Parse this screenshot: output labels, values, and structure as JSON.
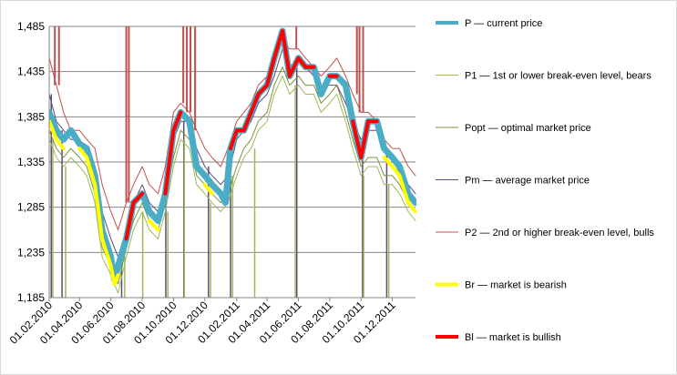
{
  "chart_data": {
    "type": "line",
    "y_ticks": [
      "1,485",
      "1,435",
      "1,385",
      "1,335",
      "1,285",
      "1,235",
      "1,185"
    ],
    "ylim": [
      1.185,
      1.485
    ],
    "x_ticks": [
      "01.02.2010",
      "01.04.2010",
      "01.06.2010",
      "01.08.2010",
      "01.10.2010",
      "01.12.2010",
      "01.02.2011",
      "01.04.2011",
      "01.06.2011",
      "01.08.2011",
      "01.10.2011",
      "01.12.2011"
    ],
    "x_range": [
      "2010-02-01",
      "2012-01-15"
    ],
    "grid": "horizontal",
    "legend_position": "right",
    "legend": [
      {
        "key": "P",
        "label": "P — current price",
        "color": "#4BACC6"
      },
      {
        "key": "P1",
        "label": "P1 — 1st or lower break-even level, bears",
        "color": "#9BBB59"
      },
      {
        "key": "Popt",
        "label": "Popt — optimal market price",
        "color": "#77933C"
      },
      {
        "key": "Pm",
        "label": "Pm — average market price",
        "color": "#604A7B"
      },
      {
        "key": "P2",
        "label": "P2 — 2nd or higher break-even level, bulls",
        "color": "#C0504D"
      },
      {
        "key": "Br",
        "label": "Br — market is bearish",
        "color": "#FFFF00"
      },
      {
        "key": "Bl",
        "label": "Bl — market is bullish",
        "color": "#FF0000"
      }
    ],
    "series": [
      {
        "key": "P",
        "x": [
          "2010-02-01",
          "2010-02-15",
          "2010-03-01",
          "2010-03-15",
          "2010-04-01",
          "2010-04-15",
          "2010-05-01",
          "2010-05-15",
          "2010-06-01",
          "2010-06-08",
          "2010-06-15",
          "2010-07-01",
          "2010-07-15",
          "2010-08-01",
          "2010-08-15",
          "2010-09-01",
          "2010-09-15",
          "2010-10-01",
          "2010-10-15",
          "2010-11-01",
          "2010-11-15",
          "2010-12-01",
          "2010-12-15",
          "2011-01-01",
          "2011-01-10",
          "2011-01-20",
          "2011-02-01",
          "2011-02-15",
          "2011-03-01",
          "2011-03-15",
          "2011-04-01",
          "2011-04-15",
          "2011-05-01",
          "2011-05-15",
          "2011-06-01",
          "2011-06-15",
          "2011-07-01",
          "2011-07-15",
          "2011-08-01",
          "2011-08-15",
          "2011-09-01",
          "2011-09-15",
          "2011-10-01",
          "2011-10-15",
          "2011-11-01",
          "2011-11-15",
          "2011-12-01",
          "2011-12-15",
          "2012-01-01",
          "2012-01-15"
        ],
        "y": [
          1.39,
          1.37,
          1.36,
          1.37,
          1.355,
          1.35,
          1.32,
          1.26,
          1.23,
          1.205,
          1.22,
          1.25,
          1.29,
          1.3,
          1.28,
          1.27,
          1.3,
          1.37,
          1.39,
          1.38,
          1.33,
          1.32,
          1.31,
          1.3,
          1.29,
          1.35,
          1.37,
          1.37,
          1.39,
          1.41,
          1.42,
          1.45,
          1.48,
          1.43,
          1.45,
          1.44,
          1.44,
          1.41,
          1.43,
          1.43,
          1.42,
          1.38,
          1.34,
          1.38,
          1.38,
          1.35,
          1.34,
          1.33,
          1.3,
          1.29
        ]
      },
      {
        "key": "Bl",
        "x": [
          "2010-02-01",
          "2010-02-15",
          "2010-03-01",
          "2010-03-15",
          "2010-04-01",
          "2010-04-15",
          "2010-05-01",
          "2010-05-15",
          "2010-06-01",
          "2010-06-08",
          "2010-06-15",
          "2010-07-01",
          "2010-07-15",
          "2010-08-01",
          "2010-08-15",
          "2010-09-01",
          "2010-09-15",
          "2010-10-01",
          "2010-10-15",
          "2010-11-01",
          "2010-11-15",
          "2010-12-01",
          "2010-12-15",
          "2011-01-01",
          "2011-01-10",
          "2011-01-20",
          "2011-02-01",
          "2011-02-15",
          "2011-03-01",
          "2011-03-15",
          "2011-04-01",
          "2011-04-15",
          "2011-05-01",
          "2011-05-15",
          "2011-06-01",
          "2011-06-15",
          "2011-07-01",
          "2011-07-15",
          "2011-08-01",
          "2011-08-15",
          "2011-09-01",
          "2011-09-15",
          "2011-10-01",
          "2011-10-15",
          "2011-11-01",
          "2011-11-15",
          "2011-12-01",
          "2011-12-15",
          "2012-01-01",
          "2012-01-15"
        ],
        "y": [
          null,
          null,
          null,
          1.37,
          null,
          null,
          null,
          null,
          null,
          null,
          null,
          1.25,
          1.29,
          1.3,
          null,
          null,
          1.3,
          1.37,
          1.39,
          null,
          1.33,
          null,
          null,
          1.3,
          null,
          1.35,
          1.37,
          1.37,
          1.39,
          1.41,
          1.42,
          1.45,
          1.48,
          1.43,
          1.45,
          1.44,
          1.44,
          null,
          1.43,
          1.43,
          null,
          1.38,
          1.34,
          1.38,
          1.38,
          null,
          null,
          null,
          null,
          null
        ]
      },
      {
        "key": "Br",
        "x": [
          "2010-02-01",
          "2010-02-15",
          "2010-03-01",
          "2010-03-15",
          "2010-04-01",
          "2010-04-15",
          "2010-05-01",
          "2010-05-15",
          "2010-06-01",
          "2010-06-08",
          "2010-06-15",
          "2010-07-01",
          "2010-07-15",
          "2010-08-01",
          "2010-08-15",
          "2010-09-01",
          "2010-09-15",
          "2010-10-01",
          "2010-10-15",
          "2010-11-01",
          "2010-11-15",
          "2010-12-01",
          "2010-12-15",
          "2011-01-01",
          "2011-01-10",
          "2011-01-20",
          "2011-02-01",
          "2011-02-15",
          "2011-03-01",
          "2011-03-15",
          "2011-04-01",
          "2011-04-15",
          "2011-05-01",
          "2011-05-15",
          "2011-06-01",
          "2011-06-15",
          "2011-07-01",
          "2011-07-15",
          "2011-08-01",
          "2011-08-15",
          "2011-09-01",
          "2011-09-15",
          "2011-10-01",
          "2011-10-15",
          "2011-11-01",
          "2011-11-15",
          "2011-12-01",
          "2011-12-15",
          "2012-01-01",
          "2012-01-15"
        ],
        "y": [
          1.38,
          1.36,
          1.35,
          null,
          1.35,
          1.34,
          1.31,
          1.25,
          1.22,
          1.2,
          1.21,
          null,
          null,
          null,
          1.27,
          1.26,
          null,
          null,
          null,
          1.37,
          null,
          1.31,
          1.3,
          null,
          1.28,
          null,
          null,
          null,
          null,
          null,
          null,
          null,
          null,
          1.42,
          null,
          null,
          null,
          1.4,
          null,
          null,
          1.41,
          null,
          null,
          null,
          null,
          1.34,
          1.33,
          1.32,
          1.29,
          1.28
        ]
      },
      {
        "key": "Pm",
        "x": [
          "2010-02-01",
          "2010-02-15",
          "2010-03-01",
          "2010-03-15",
          "2010-04-01",
          "2010-04-15",
          "2010-05-01",
          "2010-05-15",
          "2010-06-01",
          "2010-06-15",
          "2010-07-01",
          "2010-07-15",
          "2010-08-01",
          "2010-08-15",
          "2010-09-01",
          "2010-09-15",
          "2010-10-01",
          "2010-10-15",
          "2010-11-01",
          "2010-11-15",
          "2010-12-01",
          "2010-12-15",
          "2011-01-01",
          "2011-01-15",
          "2011-02-01",
          "2011-02-15",
          "2011-03-01",
          "2011-03-15",
          "2011-04-01",
          "2011-04-15",
          "2011-05-01",
          "2011-05-15",
          "2011-06-01",
          "2011-06-15",
          "2011-07-01",
          "2011-07-15",
          "2011-08-01",
          "2011-08-15",
          "2011-09-01",
          "2011-09-15",
          "2011-10-01",
          "2011-10-15",
          "2011-11-01",
          "2011-11-15",
          "2011-12-01",
          "2011-12-15",
          "2012-01-01",
          "2012-01-15"
        ],
        "y": [
          1.41,
          1.38,
          1.37,
          1.36,
          1.36,
          1.35,
          1.33,
          1.28,
          1.25,
          1.23,
          1.26,
          1.29,
          1.31,
          1.29,
          1.28,
          1.31,
          1.36,
          1.38,
          1.38,
          1.35,
          1.33,
          1.32,
          1.31,
          1.32,
          1.36,
          1.37,
          1.38,
          1.4,
          1.41,
          1.43,
          1.46,
          1.44,
          1.45,
          1.44,
          1.43,
          1.42,
          1.42,
          1.42,
          1.4,
          1.38,
          1.36,
          1.37,
          1.37,
          1.35,
          1.34,
          1.33,
          1.31,
          1.3
        ]
      },
      {
        "key": "P2",
        "x": [
          "2010-02-01",
          "2010-02-15",
          "2010-03-01",
          "2010-03-15",
          "2010-04-01",
          "2010-04-15",
          "2010-05-01",
          "2010-05-15",
          "2010-06-01",
          "2010-06-15",
          "2010-07-01",
          "2010-07-15",
          "2010-08-01",
          "2010-08-15",
          "2010-09-01",
          "2010-09-15",
          "2010-10-01",
          "2010-10-15",
          "2010-11-01",
          "2010-11-15",
          "2010-12-01",
          "2010-12-15",
          "2011-01-01",
          "2011-01-15",
          "2011-02-01",
          "2011-02-15",
          "2011-03-01",
          "2011-03-15",
          "2011-04-01",
          "2011-04-15",
          "2011-05-01",
          "2011-05-15",
          "2011-06-01",
          "2011-06-15",
          "2011-07-01",
          "2011-07-15",
          "2011-08-01",
          "2011-08-15",
          "2011-09-01",
          "2011-09-15",
          "2011-10-01",
          "2011-10-15",
          "2011-11-01",
          "2011-11-15",
          "2011-12-01",
          "2011-12-15",
          "2012-01-01",
          "2012-01-15"
        ],
        "y": [
          1.45,
          1.42,
          1.39,
          1.37,
          1.37,
          1.36,
          1.35,
          1.31,
          1.28,
          1.26,
          1.29,
          1.31,
          1.33,
          1.31,
          1.3,
          1.33,
          1.39,
          1.4,
          1.39,
          1.37,
          1.35,
          1.34,
          1.33,
          1.35,
          1.38,
          1.39,
          1.4,
          1.42,
          1.43,
          1.45,
          1.47,
          1.46,
          1.46,
          1.45,
          1.44,
          1.43,
          1.44,
          1.45,
          1.43,
          1.41,
          1.39,
          1.39,
          1.38,
          1.36,
          1.35,
          1.35,
          1.33,
          1.32
        ]
      },
      {
        "key": "P1",
        "x": [
          "2010-02-01",
          "2010-02-15",
          "2010-03-01",
          "2010-03-15",
          "2010-04-01",
          "2010-04-15",
          "2010-05-01",
          "2010-05-15",
          "2010-06-01",
          "2010-06-15",
          "2010-07-01",
          "2010-07-15",
          "2010-08-01",
          "2010-08-15",
          "2010-09-01",
          "2010-09-15",
          "2010-10-01",
          "2010-10-15",
          "2010-11-01",
          "2010-11-15",
          "2010-12-01",
          "2010-12-15",
          "2011-01-01",
          "2011-01-15",
          "2011-02-01",
          "2011-02-15",
          "2011-03-01",
          "2011-03-15",
          "2011-04-01",
          "2011-04-15",
          "2011-05-01",
          "2011-05-15",
          "2011-06-01",
          "2011-06-15",
          "2011-07-01",
          "2011-07-15",
          "2011-08-01",
          "2011-08-15",
          "2011-09-01",
          "2011-09-15",
          "2011-10-01",
          "2011-10-15",
          "2011-11-01",
          "2011-11-15",
          "2011-12-01",
          "2011-12-15",
          "2012-01-01",
          "2012-01-15"
        ],
        "y": [
          1.36,
          1.34,
          1.33,
          1.34,
          1.33,
          1.32,
          1.29,
          1.23,
          1.21,
          1.19,
          1.23,
          1.26,
          1.28,
          1.26,
          1.25,
          1.28,
          1.33,
          1.36,
          1.35,
          1.31,
          1.3,
          1.29,
          1.28,
          1.29,
          1.32,
          1.34,
          1.35,
          1.37,
          1.38,
          1.41,
          1.43,
          1.41,
          1.42,
          1.41,
          1.41,
          1.39,
          1.4,
          1.41,
          1.38,
          1.35,
          1.32,
          1.33,
          1.33,
          1.31,
          1.31,
          1.3,
          1.28,
          1.27
        ]
      },
      {
        "key": "Popt",
        "x": [
          "2010-02-01",
          "2010-02-15",
          "2010-03-01",
          "2010-03-15",
          "2010-04-01",
          "2010-04-15",
          "2010-05-01",
          "2010-05-15",
          "2010-06-01",
          "2010-06-15",
          "2010-07-01",
          "2010-07-15",
          "2010-08-01",
          "2010-08-15",
          "2010-09-01",
          "2010-09-15",
          "2010-10-01",
          "2010-10-15",
          "2010-11-01",
          "2010-11-15",
          "2010-12-01",
          "2010-12-15",
          "2011-01-01",
          "2011-01-15",
          "2011-02-01",
          "2011-02-15",
          "2011-03-01",
          "2011-03-15",
          "2011-04-01",
          "2011-04-15",
          "2011-05-01",
          "2011-05-15",
          "2011-06-01",
          "2011-06-15",
          "2011-07-01",
          "2011-07-15",
          "2011-08-01",
          "2011-08-15",
          "2011-09-01",
          "2011-09-15",
          "2011-10-01",
          "2011-10-15",
          "2011-11-01",
          "2011-11-15",
          "2011-12-01",
          "2011-12-15",
          "2012-01-01",
          "2012-01-15"
        ],
        "y": [
          1.37,
          1.35,
          1.34,
          1.35,
          1.34,
          1.33,
          1.3,
          1.24,
          1.22,
          1.2,
          1.24,
          1.27,
          1.29,
          1.27,
          1.26,
          1.29,
          1.34,
          1.37,
          1.36,
          1.32,
          1.31,
          1.3,
          1.29,
          1.3,
          1.33,
          1.35,
          1.36,
          1.38,
          1.39,
          1.42,
          1.44,
          1.42,
          1.43,
          1.42,
          1.42,
          1.4,
          1.41,
          1.42,
          1.39,
          1.36,
          1.33,
          1.34,
          1.34,
          1.32,
          1.32,
          1.31,
          1.29,
          1.28
        ]
      }
    ],
    "spikes": [
      {
        "key": "P2",
        "dates": [
          "2010-02-12",
          "2010-02-20",
          "2010-07-01",
          "2010-07-06",
          "2010-10-20",
          "2010-10-27",
          "2010-11-03",
          "2010-11-12",
          "2011-05-28",
          "2011-09-23",
          "2011-09-28",
          "2011-10-05"
        ],
        "to": 1.485
      },
      {
        "key": "Pm",
        "dates": [
          "2010-02-05",
          "2010-02-26",
          "2010-06-22",
          "2010-09-16",
          "2010-10-21",
          "2010-12-08",
          "2011-01-20",
          "2011-05-29",
          "2011-10-04",
          "2011-11-20"
        ],
        "to": 1.185
      },
      {
        "key": "P1",
        "dates": [
          "2010-02-08",
          "2010-03-05",
          "2010-06-28",
          "2010-08-02",
          "2010-09-20",
          "2010-10-22",
          "2010-12-12",
          "2011-01-24",
          "2011-03-08",
          "2011-05-26",
          "2011-10-06",
          "2011-11-24"
        ],
        "to": 1.185
      }
    ]
  }
}
